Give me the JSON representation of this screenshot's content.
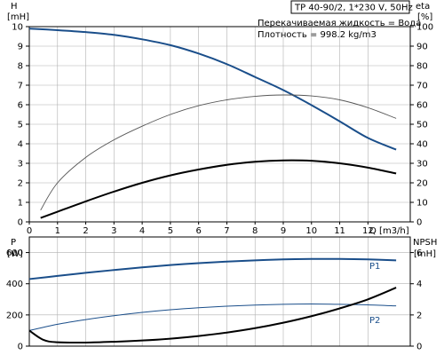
{
  "header": {
    "model": "TP 40-90/2, 1*230 V, 50Hz",
    "liquid": "Перекачиваемая жидкость = Вода",
    "density": "Плотность = 998.2 kg/m3"
  },
  "chart_data": [
    {
      "type": "line",
      "xlabel": "Q [m3/h]",
      "xlim": [
        0,
        13.5
      ],
      "x_ticks": [
        0,
        1,
        2,
        3,
        4,
        5,
        6,
        7,
        8,
        9,
        10,
        11,
        12
      ],
      "left_axis": {
        "label_top": "H",
        "label_unit": "[mH]",
        "ylim": [
          0,
          10
        ],
        "ticks": [
          0,
          1,
          2,
          3,
          4,
          5,
          6,
          7,
          8,
          9,
          10
        ]
      },
      "right_axis": {
        "label_top": "eta",
        "label_unit": "[%]",
        "ylim": [
          0,
          100
        ],
        "ticks": [
          0,
          10,
          20,
          30,
          40,
          50,
          60,
          70,
          80,
          90,
          100
        ]
      },
      "grid": true,
      "series": [
        {
          "axis": "left",
          "color": "#1a4e8a",
          "x": [
            0,
            1,
            2,
            3,
            4,
            5,
            6,
            7,
            8,
            9,
            10,
            11,
            12,
            13
          ],
          "y": [
            9.9,
            9.82,
            9.72,
            9.58,
            9.35,
            9.05,
            8.62,
            8.08,
            7.42,
            6.75,
            5.98,
            5.15,
            4.3,
            3.7
          ]
        },
        {
          "axis": "left",
          "color": "#000000",
          "x": [
            0.4,
            1,
            2,
            3,
            4,
            5,
            6,
            7,
            8,
            9,
            10,
            11,
            12,
            13
          ],
          "y": [
            0.2,
            0.52,
            1.05,
            1.55,
            2.0,
            2.38,
            2.68,
            2.92,
            3.08,
            3.15,
            3.13,
            3.0,
            2.78,
            2.48
          ]
        },
        {
          "axis": "right",
          "color": "#555555",
          "x": [
            0.4,
            1,
            2,
            3,
            4,
            5,
            6,
            7,
            8,
            9,
            10,
            11,
            12,
            13
          ],
          "y": [
            6,
            20,
            33,
            42,
            49,
            55,
            59.5,
            62.5,
            64.3,
            65,
            64.5,
            62.5,
            58.5,
            53
          ]
        }
      ]
    },
    {
      "type": "line",
      "xlim": [
        0,
        13.5
      ],
      "left_axis": {
        "label_top": "P",
        "label_unit": "[W]",
        "ylim": [
          0,
          700
        ],
        "ticks": [
          0,
          200,
          400,
          600
        ]
      },
      "right_axis": {
        "label_top": "NPSH",
        "label_unit": "[mH]",
        "ylim": [
          0,
          7
        ],
        "ticks": [
          0,
          2,
          4,
          6
        ]
      },
      "grid": true,
      "series": [
        {
          "name": "P1",
          "axis": "left",
          "color": "#1a4e8a",
          "x": [
            0,
            1,
            2,
            3,
            4,
            5,
            6,
            7,
            8,
            9,
            10,
            11,
            12,
            13
          ],
          "y": [
            430,
            450,
            470,
            488,
            505,
            520,
            532,
            542,
            550,
            556,
            559,
            559,
            556,
            550
          ]
        },
        {
          "name": "P2",
          "axis": "left",
          "color": "#1a4e8a",
          "x": [
            0,
            1,
            2,
            3,
            4,
            5,
            6,
            7,
            8,
            9,
            10,
            11,
            12,
            13
          ],
          "y": [
            100,
            140,
            170,
            195,
            216,
            233,
            246,
            256,
            263,
            268,
            270,
            268,
            265,
            258
          ]
        },
        {
          "axis": "right",
          "color": "#000000",
          "x": [
            0,
            0.5,
            1,
            2,
            3,
            4,
            5,
            6,
            7,
            8,
            9,
            10,
            11,
            12,
            13
          ],
          "y": [
            1.0,
            0.4,
            0.25,
            0.23,
            0.28,
            0.36,
            0.48,
            0.65,
            0.87,
            1.15,
            1.5,
            1.92,
            2.42,
            3.0,
            3.75
          ]
        }
      ]
    }
  ]
}
